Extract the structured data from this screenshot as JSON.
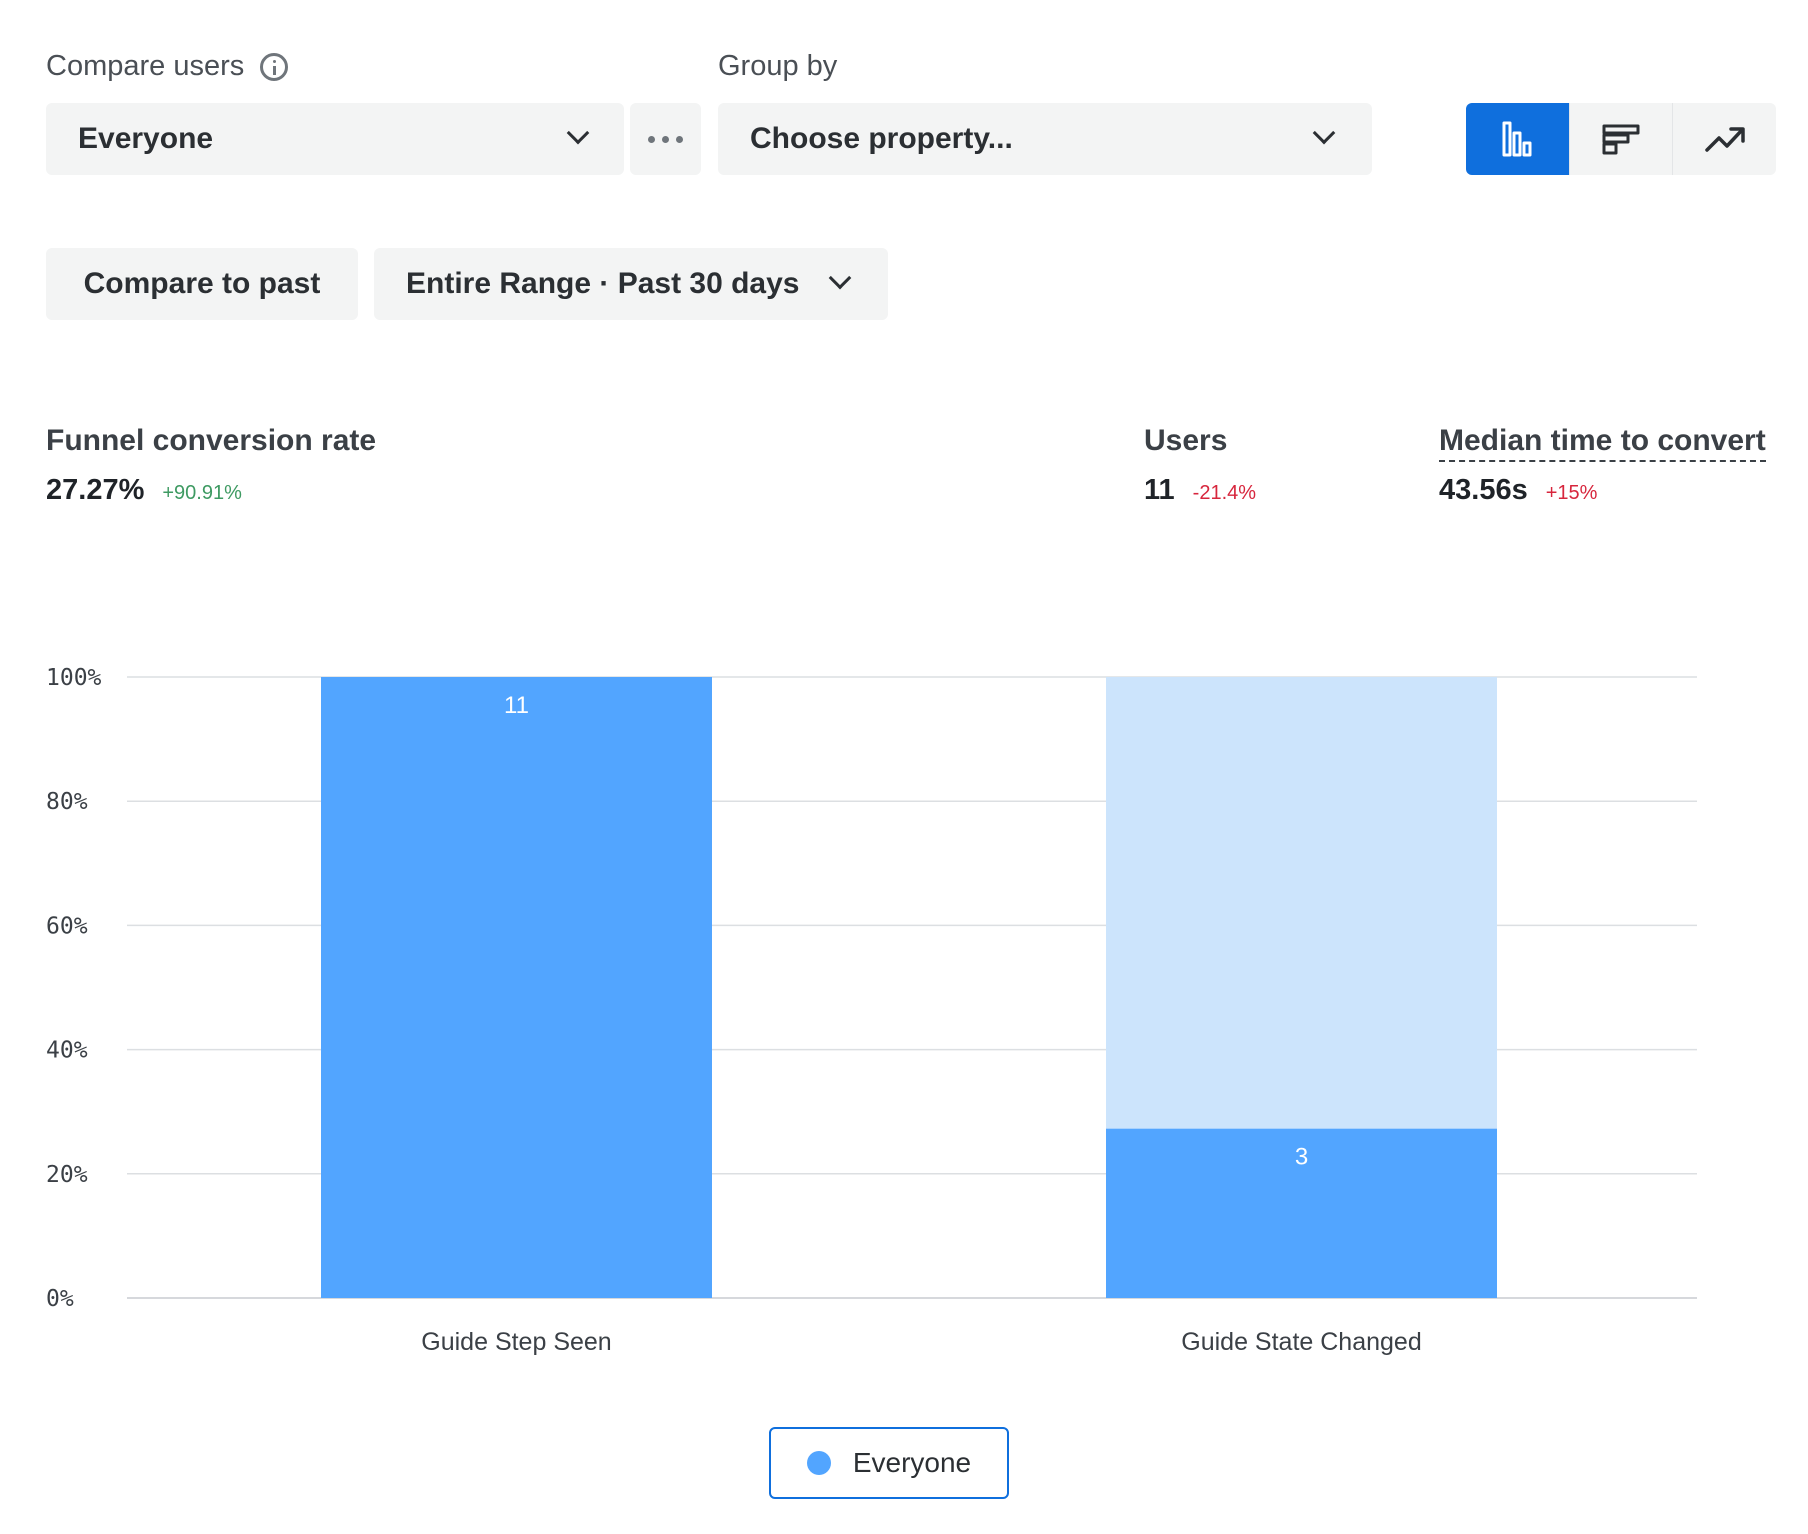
{
  "controls": {
    "compare_users_label": "Compare users",
    "compare_users_value": "Everyone",
    "group_by_label": "Group by",
    "group_by_value": "Choose property...",
    "compare_to_past": "Compare to past",
    "date_range": "Entire Range · Past 30 days",
    "views": [
      "bar-chart-icon",
      "horizontal-bar-icon",
      "trend-icon"
    ],
    "active_view": "bar-chart-icon"
  },
  "metrics": {
    "conversion": {
      "title": "Funnel conversion rate",
      "value": "27.27%",
      "delta": "+90.91%"
    },
    "users": {
      "title": "Users",
      "value": "11",
      "delta": "-21.4%"
    },
    "median": {
      "title": "Median time to convert",
      "value": "43.56s",
      "delta": "+15%"
    }
  },
  "colors": {
    "accent": "#0f6fdd",
    "bar": "#52a5ff",
    "bar_dropoff": "#cce4fc",
    "positive": "#3e9a62",
    "negative": "#d7263d"
  },
  "chart_data": {
    "type": "bar",
    "categories": [
      "Guide Step Seen",
      "Guide State Changed"
    ],
    "series": [
      {
        "name": "Everyone",
        "values": [
          100,
          27.27
        ],
        "counts": [
          "11",
          "3"
        ]
      }
    ],
    "ylim": [
      0,
      100
    ],
    "yticks": [
      "0%",
      "20%",
      "40%",
      "60%",
      "80%",
      "100%"
    ],
    "grid": true,
    "legend": "bottom-center"
  },
  "legend": {
    "label": "Everyone"
  }
}
